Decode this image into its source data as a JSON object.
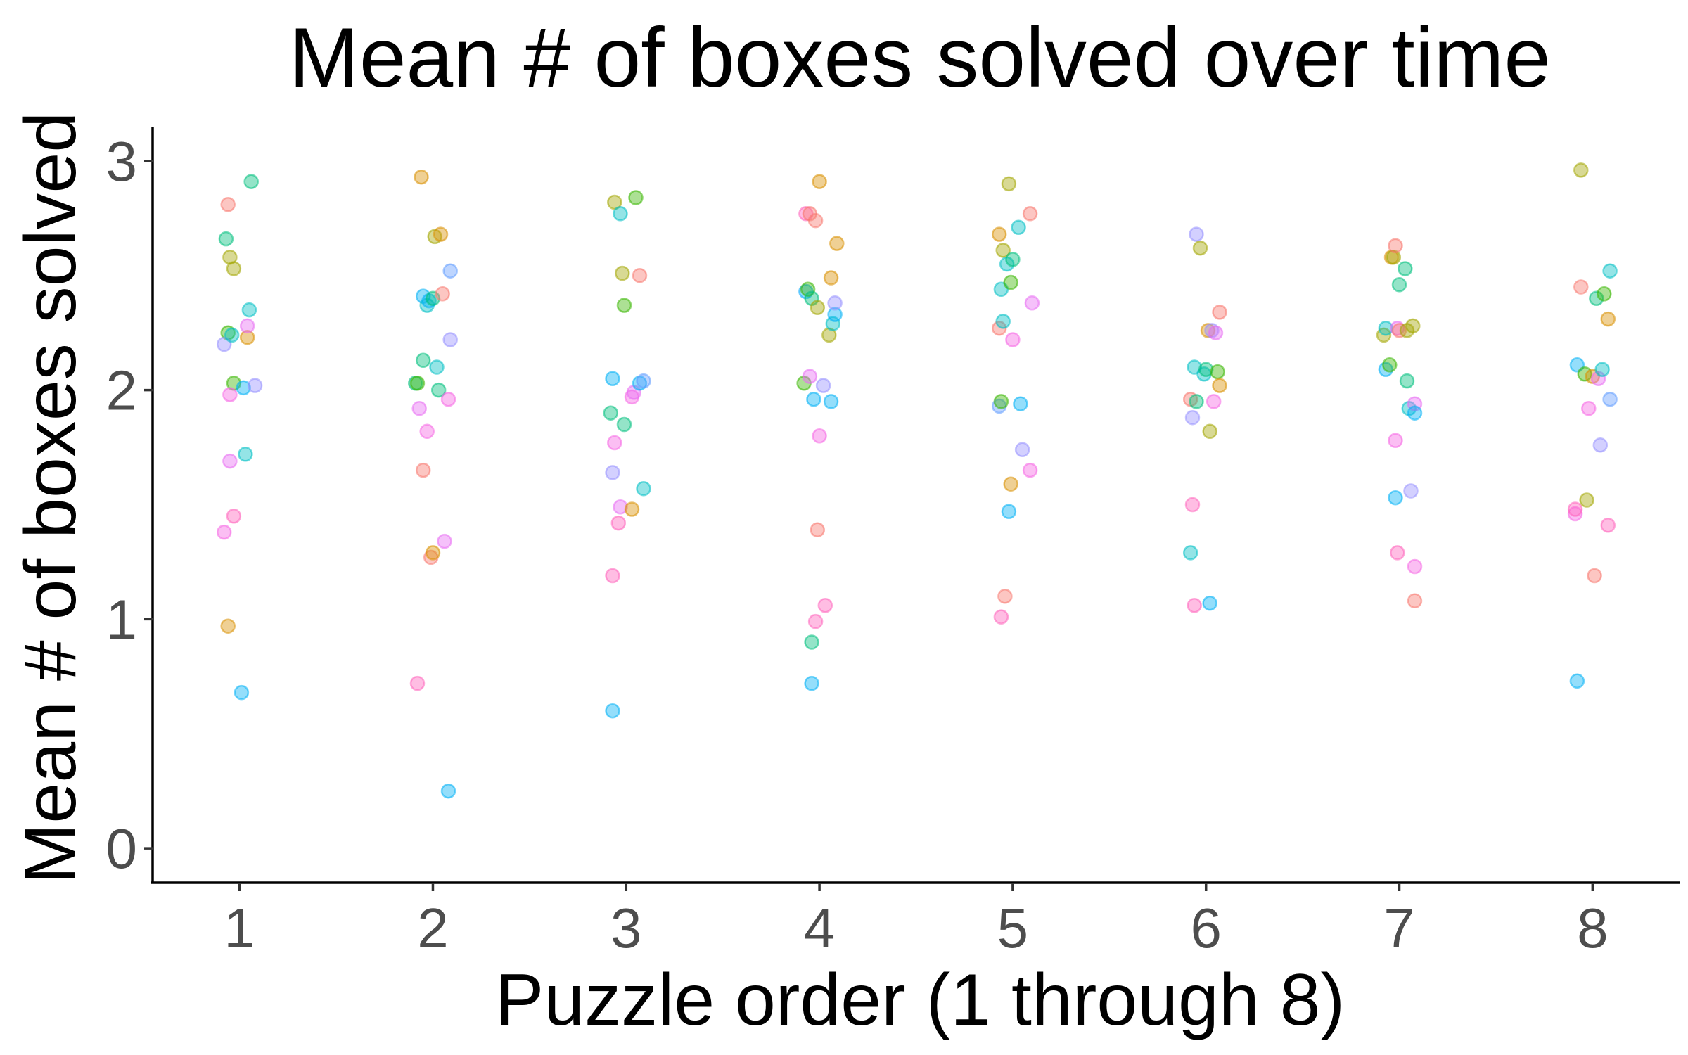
{
  "chart_data": {
    "type": "scatter",
    "title": "Mean # of boxes solved over time",
    "xlabel": "Puzzle order (1 through 8)",
    "ylabel": "Mean # of boxes solved",
    "x_ticks": [
      "1",
      "2",
      "3",
      "4",
      "5",
      "6",
      "7",
      "8"
    ],
    "y_ticks": [
      "0",
      "1",
      "2",
      "3"
    ],
    "xlim": [
      0.55,
      8.45
    ],
    "ylim": [
      -0.15,
      3.15
    ],
    "grid": false,
    "legend": "none",
    "points": [
      {
        "x": 0.92,
        "y": 1.38,
        "color": "#f564e3"
      },
      {
        "x": 0.94,
        "y": 0.97,
        "color": "#d89000"
      },
      {
        "x": 0.94,
        "y": 2.81,
        "color": "#f8766d"
      },
      {
        "x": 0.93,
        "y": 2.66,
        "color": "#00bf7d"
      },
      {
        "x": 0.95,
        "y": 2.58,
        "color": "#a3a500"
      },
      {
        "x": 0.97,
        "y": 2.53,
        "color": "#a3a500"
      },
      {
        "x": 0.94,
        "y": 2.25,
        "color": "#39b600"
      },
      {
        "x": 0.92,
        "y": 2.2,
        "color": "#9590ff"
      },
      {
        "x": 0.96,
        "y": 2.24,
        "color": "#00bfc4"
      },
      {
        "x": 0.97,
        "y": 2.03,
        "color": "#39b600"
      },
      {
        "x": 0.95,
        "y": 1.98,
        "color": "#f564e3"
      },
      {
        "x": 0.95,
        "y": 1.69,
        "color": "#e76bf3"
      },
      {
        "x": 0.97,
        "y": 1.45,
        "color": "#ff62bc"
      },
      {
        "x": 1.01,
        "y": 0.68,
        "color": "#00b0f6"
      },
      {
        "x": 1.02,
        "y": 2.01,
        "color": "#00b0f6"
      },
      {
        "x": 1.03,
        "y": 1.72,
        "color": "#00bfc4"
      },
      {
        "x": 1.04,
        "y": 2.23,
        "color": "#d89000"
      },
      {
        "x": 1.04,
        "y": 2.28,
        "color": "#e76bf3"
      },
      {
        "x": 1.05,
        "y": 2.35,
        "color": "#00bfc4"
      },
      {
        "x": 1.06,
        "y": 2.91,
        "color": "#00bf7d"
      },
      {
        "x": 1.08,
        "y": 2.02,
        "color": "#9590ff"
      },
      {
        "x": 1.92,
        "y": 0.72,
        "color": "#ff62bc"
      },
      {
        "x": 1.91,
        "y": 2.03,
        "color": "#00bf7d"
      },
      {
        "x": 1.92,
        "y": 2.03,
        "color": "#39b600"
      },
      {
        "x": 1.93,
        "y": 1.92,
        "color": "#e76bf3"
      },
      {
        "x": 1.94,
        "y": 2.93,
        "color": "#d89000"
      },
      {
        "x": 1.95,
        "y": 1.65,
        "color": "#f8766d"
      },
      {
        "x": 1.95,
        "y": 2.41,
        "color": "#00b0f6"
      },
      {
        "x": 1.95,
        "y": 2.13,
        "color": "#00bf7d"
      },
      {
        "x": 1.97,
        "y": 1.82,
        "color": "#f564e3"
      },
      {
        "x": 1.97,
        "y": 2.37,
        "color": "#00bfc4"
      },
      {
        "x": 1.98,
        "y": 2.39,
        "color": "#00b0f6"
      },
      {
        "x": 1.99,
        "y": 1.27,
        "color": "#f8766d"
      },
      {
        "x": 2.0,
        "y": 2.4,
        "color": "#00bf7d"
      },
      {
        "x": 2.0,
        "y": 1.29,
        "color": "#d89000"
      },
      {
        "x": 2.01,
        "y": 2.67,
        "color": "#a3a500"
      },
      {
        "x": 2.02,
        "y": 2.1,
        "color": "#00bfc4"
      },
      {
        "x": 2.03,
        "y": 2.0,
        "color": "#00bf7d"
      },
      {
        "x": 2.04,
        "y": 2.68,
        "color": "#d89000"
      },
      {
        "x": 2.05,
        "y": 2.42,
        "color": "#f8766d"
      },
      {
        "x": 2.06,
        "y": 1.34,
        "color": "#e76bf3"
      },
      {
        "x": 2.08,
        "y": 1.96,
        "color": "#f564e3"
      },
      {
        "x": 2.09,
        "y": 2.22,
        "color": "#9590ff"
      },
      {
        "x": 2.09,
        "y": 2.52,
        "color": "#619cff"
      },
      {
        "x": 2.08,
        "y": 0.25,
        "color": "#00b0f6"
      },
      {
        "x": 2.93,
        "y": 0.6,
        "color": "#00b0f6"
      },
      {
        "x": 2.93,
        "y": 1.19,
        "color": "#ff62bc"
      },
      {
        "x": 2.93,
        "y": 1.64,
        "color": "#9590ff"
      },
      {
        "x": 2.94,
        "y": 1.77,
        "color": "#f564e3"
      },
      {
        "x": 2.92,
        "y": 1.9,
        "color": "#00bf7d"
      },
      {
        "x": 2.93,
        "y": 2.05,
        "color": "#00b0f6"
      },
      {
        "x": 2.94,
        "y": 2.82,
        "color": "#a3a500"
      },
      {
        "x": 2.96,
        "y": 1.42,
        "color": "#ff62bc"
      },
      {
        "x": 2.97,
        "y": 1.49,
        "color": "#e76bf3"
      },
      {
        "x": 2.97,
        "y": 2.77,
        "color": "#00bfc4"
      },
      {
        "x": 2.98,
        "y": 2.51,
        "color": "#a3a500"
      },
      {
        "x": 2.99,
        "y": 2.37,
        "color": "#39b600"
      },
      {
        "x": 2.99,
        "y": 1.85,
        "color": "#00bf7d"
      },
      {
        "x": 3.03,
        "y": 1.48,
        "color": "#d89000"
      },
      {
        "x": 3.03,
        "y": 1.97,
        "color": "#f564e3"
      },
      {
        "x": 3.04,
        "y": 1.99,
        "color": "#e76bf3"
      },
      {
        "x": 3.05,
        "y": 2.84,
        "color": "#39b600"
      },
      {
        "x": 3.07,
        "y": 2.03,
        "color": "#00b0f6"
      },
      {
        "x": 3.07,
        "y": 2.5,
        "color": "#f8766d"
      },
      {
        "x": 3.09,
        "y": 1.57,
        "color": "#00bfc4"
      },
      {
        "x": 3.09,
        "y": 2.04,
        "color": "#619cff"
      },
      {
        "x": 3.92,
        "y": 2.03,
        "color": "#39b600"
      },
      {
        "x": 3.93,
        "y": 2.43,
        "color": "#00a9ff"
      },
      {
        "x": 3.93,
        "y": 2.77,
        "color": "#ff62bc"
      },
      {
        "x": 3.94,
        "y": 2.44,
        "color": "#39b600"
      },
      {
        "x": 3.95,
        "y": 2.06,
        "color": "#e76bf3"
      },
      {
        "x": 3.95,
        "y": 2.77,
        "color": "#f8766d"
      },
      {
        "x": 3.96,
        "y": 2.4,
        "color": "#00bf7d"
      },
      {
        "x": 3.96,
        "y": 0.9,
        "color": "#00bf7d"
      },
      {
        "x": 3.96,
        "y": 0.72,
        "color": "#00b0f6"
      },
      {
        "x": 3.97,
        "y": 1.96,
        "color": "#00b0f6"
      },
      {
        "x": 3.98,
        "y": 2.74,
        "color": "#f8766d"
      },
      {
        "x": 3.98,
        "y": 0.99,
        "color": "#ff62bc"
      },
      {
        "x": 3.99,
        "y": 2.36,
        "color": "#a3a500"
      },
      {
        "x": 3.99,
        "y": 1.39,
        "color": "#f8766d"
      },
      {
        "x": 4.0,
        "y": 2.91,
        "color": "#d89000"
      },
      {
        "x": 4.0,
        "y": 1.8,
        "color": "#f564e3"
      },
      {
        "x": 4.02,
        "y": 2.02,
        "color": "#9590ff"
      },
      {
        "x": 4.03,
        "y": 1.06,
        "color": "#ff62bc"
      },
      {
        "x": 4.05,
        "y": 2.24,
        "color": "#a3a500"
      },
      {
        "x": 4.06,
        "y": 2.49,
        "color": "#d89000"
      },
      {
        "x": 4.06,
        "y": 1.95,
        "color": "#00b0f6"
      },
      {
        "x": 4.07,
        "y": 2.29,
        "color": "#00bfc4"
      },
      {
        "x": 4.08,
        "y": 2.33,
        "color": "#00b0f6"
      },
      {
        "x": 4.08,
        "y": 2.38,
        "color": "#9590ff"
      },
      {
        "x": 4.09,
        "y": 2.64,
        "color": "#d89000"
      },
      {
        "x": 4.93,
        "y": 1.93,
        "color": "#619cff"
      },
      {
        "x": 4.93,
        "y": 2.27,
        "color": "#f8766d"
      },
      {
        "x": 4.93,
        "y": 2.68,
        "color": "#d89000"
      },
      {
        "x": 4.94,
        "y": 1.01,
        "color": "#ff62bc"
      },
      {
        "x": 4.94,
        "y": 1.95,
        "color": "#39b600"
      },
      {
        "x": 4.94,
        "y": 2.44,
        "color": "#00bfc4"
      },
      {
        "x": 4.95,
        "y": 2.61,
        "color": "#a3a500"
      },
      {
        "x": 4.95,
        "y": 2.3,
        "color": "#00bfc4"
      },
      {
        "x": 4.96,
        "y": 1.1,
        "color": "#f8766d"
      },
      {
        "x": 4.97,
        "y": 2.55,
        "color": "#00bfc4"
      },
      {
        "x": 4.98,
        "y": 1.47,
        "color": "#00b0f6"
      },
      {
        "x": 4.98,
        "y": 2.9,
        "color": "#a3a500"
      },
      {
        "x": 4.99,
        "y": 2.47,
        "color": "#39b600"
      },
      {
        "x": 4.99,
        "y": 1.59,
        "color": "#d89000"
      },
      {
        "x": 5.0,
        "y": 2.22,
        "color": "#f564e3"
      },
      {
        "x": 5.0,
        "y": 2.57,
        "color": "#00bf7d"
      },
      {
        "x": 5.03,
        "y": 2.71,
        "color": "#00bfc4"
      },
      {
        "x": 5.04,
        "y": 1.94,
        "color": "#00b0f6"
      },
      {
        "x": 5.05,
        "y": 1.74,
        "color": "#9590ff"
      },
      {
        "x": 5.09,
        "y": 1.65,
        "color": "#f564e3"
      },
      {
        "x": 5.09,
        "y": 2.77,
        "color": "#f8766d"
      },
      {
        "x": 5.1,
        "y": 2.38,
        "color": "#e76bf3"
      },
      {
        "x": 5.92,
        "y": 1.96,
        "color": "#f8766d"
      },
      {
        "x": 5.92,
        "y": 1.29,
        "color": "#00bfc4"
      },
      {
        "x": 5.93,
        "y": 1.5,
        "color": "#ff62bc"
      },
      {
        "x": 5.93,
        "y": 1.88,
        "color": "#9590ff"
      },
      {
        "x": 5.94,
        "y": 1.06,
        "color": "#ff62bc"
      },
      {
        "x": 5.94,
        "y": 2.1,
        "color": "#00bfc4"
      },
      {
        "x": 5.95,
        "y": 1.95,
        "color": "#00bf7d"
      },
      {
        "x": 5.95,
        "y": 2.68,
        "color": "#9590ff"
      },
      {
        "x": 5.97,
        "y": 2.62,
        "color": "#a3a500"
      },
      {
        "x": 5.99,
        "y": 2.07,
        "color": "#00bfc4"
      },
      {
        "x": 6.0,
        "y": 2.09,
        "color": "#00bf7d"
      },
      {
        "x": 6.01,
        "y": 2.26,
        "color": "#d89000"
      },
      {
        "x": 6.02,
        "y": 1.07,
        "color": "#00b0f6"
      },
      {
        "x": 6.02,
        "y": 1.82,
        "color": "#a3a500"
      },
      {
        "x": 6.03,
        "y": 2.26,
        "color": "#9590ff"
      },
      {
        "x": 6.04,
        "y": 1.95,
        "color": "#f564e3"
      },
      {
        "x": 6.05,
        "y": 2.25,
        "color": "#e76bf3"
      },
      {
        "x": 6.06,
        "y": 2.08,
        "color": "#39b600"
      },
      {
        "x": 6.07,
        "y": 2.02,
        "color": "#d89000"
      },
      {
        "x": 6.07,
        "y": 2.34,
        "color": "#f8766d"
      },
      {
        "x": 6.92,
        "y": 2.24,
        "color": "#a3a500"
      },
      {
        "x": 6.93,
        "y": 2.27,
        "color": "#00bfc4"
      },
      {
        "x": 6.93,
        "y": 2.09,
        "color": "#00b0f6"
      },
      {
        "x": 6.95,
        "y": 2.11,
        "color": "#39b600"
      },
      {
        "x": 6.96,
        "y": 2.58,
        "color": "#d89000"
      },
      {
        "x": 6.97,
        "y": 2.58,
        "color": "#a3a500"
      },
      {
        "x": 6.98,
        "y": 2.63,
        "color": "#f8766d"
      },
      {
        "x": 6.98,
        "y": 1.78,
        "color": "#f564e3"
      },
      {
        "x": 6.98,
        "y": 1.53,
        "color": "#00b0f6"
      },
      {
        "x": 6.99,
        "y": 2.27,
        "color": "#e76bf3"
      },
      {
        "x": 6.99,
        "y": 1.29,
        "color": "#ff62bc"
      },
      {
        "x": 7.0,
        "y": 2.26,
        "color": "#f8766d"
      },
      {
        "x": 7.0,
        "y": 2.46,
        "color": "#00bf7d"
      },
      {
        "x": 7.03,
        "y": 2.53,
        "color": "#00bf7d"
      },
      {
        "x": 7.04,
        "y": 2.04,
        "color": "#00bf7d"
      },
      {
        "x": 7.04,
        "y": 2.26,
        "color": "#a3a500"
      },
      {
        "x": 7.05,
        "y": 1.92,
        "color": "#00bfc4"
      },
      {
        "x": 7.06,
        "y": 1.56,
        "color": "#9590ff"
      },
      {
        "x": 7.07,
        "y": 2.28,
        "color": "#a3a500"
      },
      {
        "x": 7.08,
        "y": 1.94,
        "color": "#e76bf3"
      },
      {
        "x": 7.08,
        "y": 1.9,
        "color": "#00b0f6"
      },
      {
        "x": 7.08,
        "y": 1.23,
        "color": "#f564e3"
      },
      {
        "x": 7.08,
        "y": 1.08,
        "color": "#f8766d"
      },
      {
        "x": 7.91,
        "y": 1.46,
        "color": "#f564e3"
      },
      {
        "x": 7.91,
        "y": 1.48,
        "color": "#ff62bc"
      },
      {
        "x": 7.92,
        "y": 2.11,
        "color": "#00b0f6"
      },
      {
        "x": 7.92,
        "y": 0.73,
        "color": "#00b0f6"
      },
      {
        "x": 7.94,
        "y": 2.96,
        "color": "#a3a500"
      },
      {
        "x": 7.94,
        "y": 2.45,
        "color": "#f8766d"
      },
      {
        "x": 7.96,
        "y": 2.07,
        "color": "#39b600"
      },
      {
        "x": 7.97,
        "y": 1.52,
        "color": "#a3a500"
      },
      {
        "x": 7.98,
        "y": 1.92,
        "color": "#f564e3"
      },
      {
        "x": 8.0,
        "y": 2.06,
        "color": "#d89000"
      },
      {
        "x": 8.01,
        "y": 1.19,
        "color": "#f8766d"
      },
      {
        "x": 8.02,
        "y": 2.4,
        "color": "#00bf7d"
      },
      {
        "x": 8.03,
        "y": 2.05,
        "color": "#e76bf3"
      },
      {
        "x": 8.04,
        "y": 1.76,
        "color": "#9590ff"
      },
      {
        "x": 8.05,
        "y": 2.09,
        "color": "#00bfc4"
      },
      {
        "x": 8.06,
        "y": 2.42,
        "color": "#39b600"
      },
      {
        "x": 8.08,
        "y": 1.41,
        "color": "#ff62bc"
      },
      {
        "x": 8.08,
        "y": 2.31,
        "color": "#d89000"
      },
      {
        "x": 8.09,
        "y": 2.52,
        "color": "#00bfc4"
      },
      {
        "x": 8.09,
        "y": 1.96,
        "color": "#619cff"
      }
    ]
  }
}
